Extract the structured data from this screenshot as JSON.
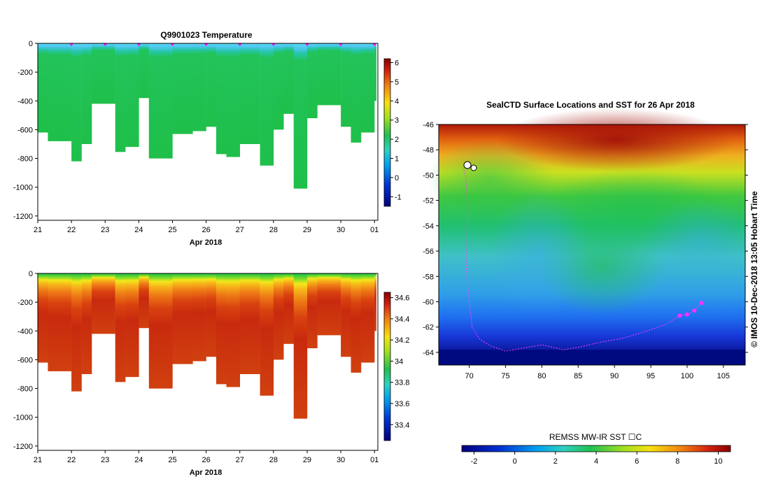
{
  "chart_data": [
    {
      "type": "heatmap",
      "title": "Q9901023  Temperature",
      "xlabel": "Apr 2018",
      "x_ticks": [
        "21",
        "22",
        "23",
        "24",
        "25",
        "26",
        "27",
        "28",
        "29",
        "30",
        "01"
      ],
      "y_ticks": [
        "0",
        "-200",
        "-400",
        "-600",
        "-800",
        "-1000",
        "-1200"
      ],
      "ylim": [
        -1230,
        0
      ],
      "xlim": [
        21,
        31.1
      ],
      "profile_times": [
        21.0,
        21.3,
        21.6,
        22.0,
        22.3,
        22.6,
        23.0,
        23.3,
        23.6,
        24.0,
        24.3,
        24.6,
        25.0,
        25.3,
        25.6,
        26.0,
        26.3,
        26.6,
        27.0,
        27.3,
        27.6,
        28.0,
        28.3,
        28.6,
        29.0,
        29.3,
        29.6,
        30.0,
        30.3,
        30.6,
        31.0
      ],
      "profile_max_depth": [
        620,
        680,
        680,
        820,
        700,
        420,
        420,
        755,
        720,
        380,
        800,
        800,
        630,
        630,
        610,
        580,
        770,
        790,
        700,
        700,
        850,
        600,
        490,
        1010,
        520,
        430,
        430,
        580,
        690,
        620,
        400
      ],
      "surface_markers": [
        "22",
        "23",
        "24",
        "25",
        "26",
        "27",
        "28",
        "29",
        "30",
        "01"
      ],
      "colorbar": {
        "ticks": [
          "6",
          "5",
          "4",
          "3",
          "2",
          "1",
          "0",
          "-1"
        ],
        "min": -1.5,
        "max": 6.2
      },
      "values_summary": {
        "surface": 0.5,
        "depth": 2.2
      }
    },
    {
      "type": "heatmap",
      "title": "",
      "xlabel": "Apr 2018",
      "x_ticks": [
        "21",
        "22",
        "23",
        "24",
        "25",
        "26",
        "27",
        "28",
        "29",
        "30",
        "01"
      ],
      "y_ticks": [
        "0",
        "-200",
        "-400",
        "-600",
        "-800",
        "-1000",
        "-1200"
      ],
      "ylim": [
        -1230,
        0
      ],
      "xlim": [
        21,
        31.1
      ],
      "colorbar": {
        "ticks": [
          "34.6",
          "34.4",
          "34.2",
          "34",
          "33.8",
          "33.6",
          "33.4"
        ],
        "min": 33.25,
        "max": 34.65
      },
      "values_summary": {
        "surface": 33.9,
        "depth": 34.6
      }
    },
    {
      "type": "heatmap",
      "title": "SealCTD Surface Locations and SST for 26 Apr 2018",
      "x_ticks": [
        "70",
        "75",
        "80",
        "85",
        "90",
        "95",
        "100",
        "105"
      ],
      "y_ticks": [
        "-46",
        "-48",
        "-50",
        "-52",
        "-54",
        "-56",
        "-58",
        "-60",
        "-62",
        "-64"
      ],
      "xlim": [
        65.8,
        108
      ],
      "ylim": [
        -65,
        -46
      ],
      "colorbar": {
        "label": "REMSS MW-IR SST ☐C",
        "ticks": [
          "-2",
          "0",
          "2",
          "4",
          "6",
          "8",
          "10"
        ],
        "min": -2.6,
        "max": 10.6
      },
      "track_lonlat": [
        [
          69.2,
          -49.4
        ],
        [
          69.6,
          -50.5
        ],
        [
          69.8,
          -52.5
        ],
        [
          69.7,
          -55
        ],
        [
          69.6,
          -57.5
        ],
        [
          70,
          -60
        ],
        [
          70.4,
          -62
        ],
        [
          71.5,
          -63
        ],
        [
          73,
          -63.5
        ],
        [
          75,
          -63.9
        ],
        [
          77,
          -63.7
        ],
        [
          80,
          -63.4
        ],
        [
          83,
          -63.8
        ],
        [
          85,
          -63.6
        ],
        [
          88,
          -63.2
        ],
        [
          91,
          -62.9
        ],
        [
          94,
          -62.4
        ],
        [
          97,
          -61.8
        ],
        [
          99,
          -61.1
        ],
        [
          100,
          -61
        ],
        [
          101,
          -60.7
        ],
        [
          102,
          -60.1
        ]
      ],
      "annotation": "© IMOS 10-Dec-2018 13:05 Hobart Time"
    }
  ]
}
